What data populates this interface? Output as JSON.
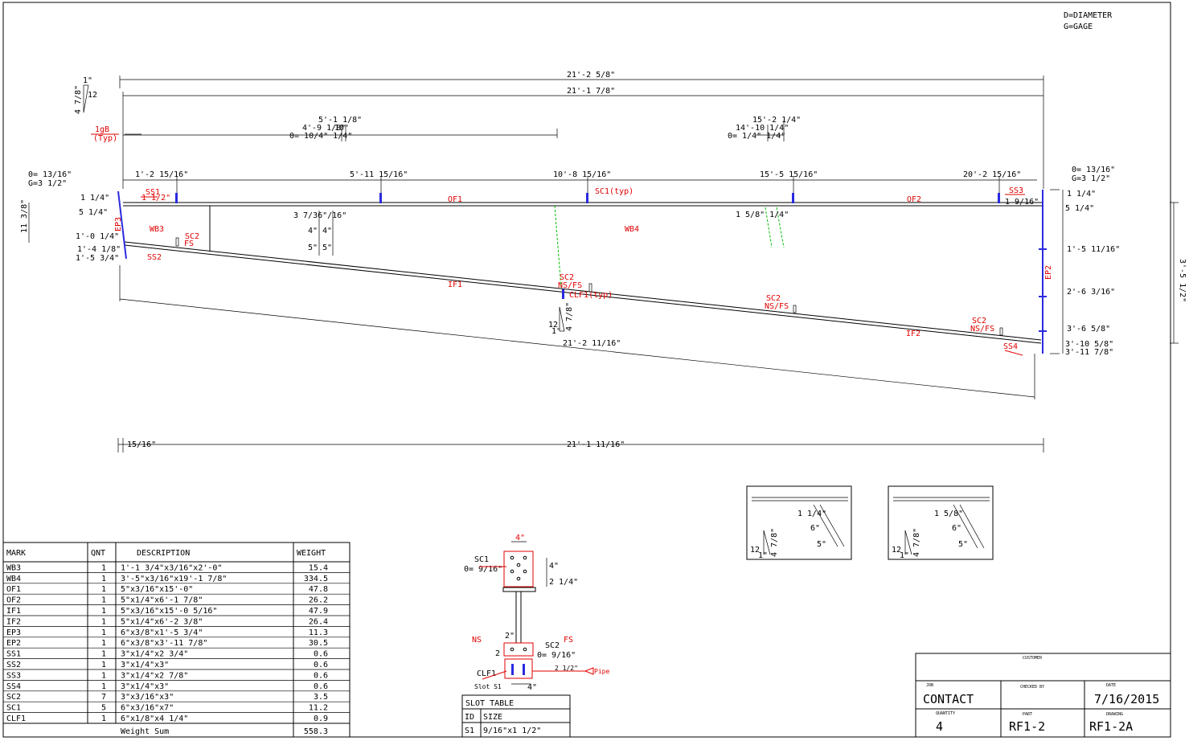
{
  "legend": {
    "line1": "D=DIAMETER",
    "line2": "G=GAGE"
  },
  "dims": {
    "overall_top": "21'-2 5/8\"",
    "overall_top2": "21'-1 7/8\"",
    "left_a": "5'-1 1/8\"",
    "left_b": "4'-9 1/8\"",
    "left_b2": "10\"",
    "left_c": "0= 10/4\" 1/4\"",
    "right_a": "15'-2 1/4\"",
    "right_b": "14'-10 1/4\"",
    "right_c": "0= 1/4\" 1/4\"",
    "slope_small": "1\"",
    "slope_big": "12",
    "slope_ratio": "4 7/8\"",
    "gage_left": "1gB",
    "gage_left2": "(Typ)",
    "hole_left_d": "0= 13/16\"",
    "hole_left_g": "G=3 1/2\"",
    "hole_right_d": "0= 13/16\"",
    "hole_right_g": "G=3 1/2\"",
    "st1": "1'-2 15/16\"",
    "st2": "5'-11 15/16\"",
    "st3": "10'-8 15/16\"",
    "st4": "15'-5 15/16\"",
    "st5": "20'-2 15/16\"",
    "l1": "1 1/4\"",
    "l1b": "1 1/2\"",
    "l2": "5 1/4\"",
    "l3": "11 3/8\"",
    "l4": "1'-0 1/4\"",
    "l5": "1'-4 1/8\"",
    "l6": "1'-5 3/4\"",
    "m1": "3 7/36\"/16\"",
    "m2": "4\"",
    "m3": "4\"",
    "m4": "5\"",
    "m5": "5\"",
    "m6": "1 5/8\" 1/4\"",
    "r1": "1 1/4\"",
    "r2": "5 1/4\"",
    "r3": "1'-5 11/16\"",
    "r4": "2'-6 3/16\"",
    "r5": "3'-6 5/8\"",
    "r6": "3'-10 5/8\"",
    "r7": "3'-11 7/8\"",
    "r_total": "3'-5 1/2\"",
    "r_top": "1 9/16\"",
    "bottom_slope": "21'-2 11/16\"",
    "bottom_left": "15/16\"",
    "bottom_total": "21'-1 11/16\"",
    "mid_slope_12": "12",
    "mid_slope_1": "1\"",
    "mid_slope_r": "4 7/8\""
  },
  "marks": {
    "SS1": "SS1",
    "SS2": "SS2",
    "SS3": "SS3",
    "SS4": "SS4",
    "SC1": "SC1(typ)",
    "SC2a": "SC2",
    "FSa": "FS",
    "OF1": "OF1",
    "OF2": "OF2",
    "IF1": "IF1",
    "IF2": "IF2",
    "WB3": "WB3",
    "WB4": "WB4",
    "EP3": "EP3",
    "EP2": "EP2",
    "SC2b": "SC2",
    "NSFSb": "NS/FS",
    "CLF1": "CLF1(typ)",
    "SC2c": "SC2",
    "NSFSc": "NS/FS",
    "SC2d": "SC2",
    "NSFSd": "NS/FS"
  },
  "details": {
    "d1": {
      "a": "1 1/4\"",
      "b": "6\"",
      "c": "5\"",
      "s12": "12",
      "s1": "1\"",
      "sr": "4 7/8\""
    },
    "d2": {
      "a": "1 5/8\"",
      "b": "6\"",
      "c": "5\"",
      "s12": "12",
      "s1": "1\"",
      "sr": "4 7/8\""
    }
  },
  "clip": {
    "top_w": "4\"",
    "sc1": "SC1",
    "sc1_d": "0= 9/16\"",
    "h1": "4\"",
    "h2": "2 1/4\"",
    "ns": "NS",
    "fs": "FS",
    "w2": "2\"",
    "sc2": "SC2",
    "sc2_d": "0= 9/16\"",
    "two": "2",
    "clf1": "CLF1",
    "slot": "Slot S1",
    "w3": "4\"",
    "pipe": "Pipe",
    "half": "2 1/2\""
  },
  "bom": {
    "headers": [
      "MARK",
      "QNT",
      "DESCRIPTION",
      "WEIGHT"
    ],
    "rows": [
      [
        "WB3",
        "1",
        "1'-1 3/4\"x3/16\"x2'-0\"",
        "15.4"
      ],
      [
        "WB4",
        "1",
        "3'-5\"x3/16\"x19'-1 7/8\"",
        "334.5"
      ],
      [
        "OF1",
        "1",
        "5\"x3/16\"x15'-0\"",
        "47.8"
      ],
      [
        "OF2",
        "1",
        "5\"x1/4\"x6'-1 7/8\"",
        "26.2"
      ],
      [
        "IF1",
        "1",
        "5\"x3/16\"x15'-0 5/16\"",
        "47.9"
      ],
      [
        "IF2",
        "1",
        "5\"x1/4\"x6'-2 3/8\"",
        "26.4"
      ],
      [
        "EP3",
        "1",
        "6\"x3/8\"x1'-5 3/4\"",
        "11.3"
      ],
      [
        "EP2",
        "1",
        "6\"x3/8\"x3'-11 7/8\"",
        "30.5"
      ],
      [
        "SS1",
        "1",
        "3\"x1/4\"x2 3/4\"",
        "0.6"
      ],
      [
        "SS2",
        "1",
        "3\"x1/4\"x3\"",
        "0.6"
      ],
      [
        "SS3",
        "1",
        "3\"x1/4\"x2 7/8\"",
        "0.6"
      ],
      [
        "SS4",
        "1",
        "3\"x1/4\"x3\"",
        "0.6"
      ],
      [
        "SC2",
        "7",
        "3\"x3/16\"x3\"",
        "3.5"
      ],
      [
        "SC1",
        "5",
        "6\"x3/16\"x7\"",
        "11.2"
      ],
      [
        "CLF1",
        "1",
        "6\"x1/8\"x4 1/4\"",
        "0.9"
      ]
    ],
    "sum_label": "Weight Sum",
    "sum_value": "558.3"
  },
  "slot_table": {
    "title": "SLOT TABLE",
    "h_id": "ID",
    "h_size": "SIZE",
    "id": "S1",
    "size": "9/16\"x1 1/2\""
  },
  "title_block": {
    "customer_label": "CUSTOMER",
    "job_label": "JOB",
    "job": "CONTACT",
    "checked_label": "CHECKED BY",
    "date_label": "DATE",
    "date": "7/16/2015",
    "qty_label": "QUANTITY",
    "qty": "4",
    "part_label": "PART",
    "part": "RF1-2",
    "drawing_label": "DRAWING",
    "drawing": "RF1-2A"
  }
}
